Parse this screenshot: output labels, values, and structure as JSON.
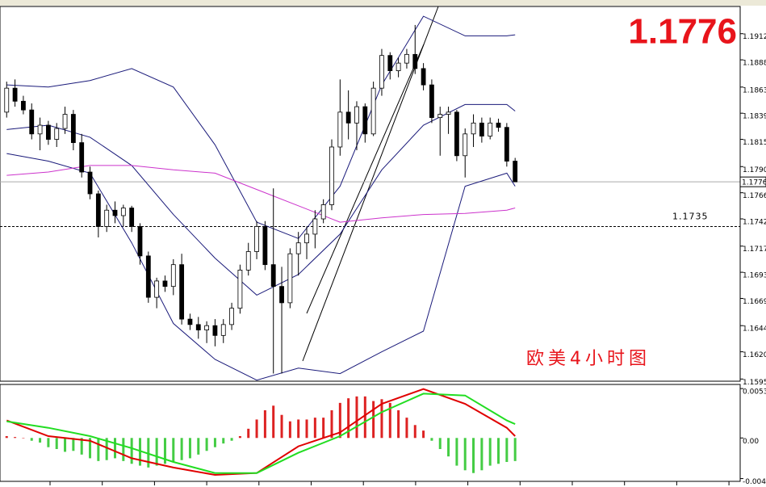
{
  "chart_data": [
    {
      "type": "candlestick",
      "title": "欧美4小时图",
      "current_price": 1.1776,
      "level": 1.1735,
      "xlim": [
        -0.8,
        88
      ],
      "ylim": [
        1.1593,
        1.1937
      ],
      "yticks": [
        1.1912,
        1.1888,
        1.1863,
        1.1839,
        1.1815,
        {
          "value": 1.179,
          "label": "1.1790"
        },
        1.1766,
        1.1742,
        1.1717,
        1.1693,
        1.1669,
        1.1644,
        {
          "value": 1.162,
          "label": "1.1620"
        },
        1.1595
      ],
      "up_color": "#ffffff",
      "down_color": "#000000",
      "open": [
        1.184,
        1.1862,
        1.185,
        1.1842,
        1.182,
        1.1828,
        1.1815,
        1.1825,
        1.1838,
        1.1812,
        1.1785,
        1.1765,
        1.1735,
        1.175,
        1.1745,
        1.1752,
        1.1735,
        1.1708,
        1.167,
        1.1685,
        1.168,
        1.17,
        1.165,
        1.1645,
        1.164,
        1.1644,
        1.1635,
        1.1645,
        1.166,
        1.1695,
        1.1712,
        1.1735,
        1.17,
        1.168,
        1.1665,
        1.171,
        1.172,
        1.1728,
        1.1742,
        1.1755,
        1.1808,
        1.184,
        1.183,
        1.1845,
        1.182,
        1.1862,
        1.1892,
        1.1878,
        1.1885,
        1.1893,
        1.188,
        1.1865,
        1.1835,
        1.1838,
        1.184,
        1.18,
        1.182,
        1.183,
        1.1818,
        1.183,
        1.1826,
        1.1795
      ],
      "high": [
        1.1868,
        1.187,
        1.1855,
        1.1848,
        1.1835,
        1.1832,
        1.183,
        1.1845,
        1.1842,
        1.182,
        1.179,
        1.1768,
        1.1755,
        1.1758,
        1.1755,
        1.1754,
        1.1738,
        1.1712,
        1.1688,
        1.169,
        1.1705,
        1.171,
        1.1655,
        1.1652,
        1.1648,
        1.165,
        1.165,
        1.1665,
        1.17,
        1.172,
        1.174,
        1.174,
        1.177,
        1.1698,
        1.1715,
        1.173,
        1.1735,
        1.175,
        1.176,
        1.1815,
        1.187,
        1.186,
        1.185,
        1.1848,
        1.1868,
        1.1898,
        1.1895,
        1.189,
        1.1898,
        1.192,
        1.1885,
        1.187,
        1.1845,
        1.1845,
        1.1842,
        1.1825,
        1.1838,
        1.1835,
        1.1835,
        1.1834,
        1.183,
        1.1798
      ],
      "low": [
        1.1835,
        1.1845,
        1.1838,
        1.1815,
        1.1805,
        1.181,
        1.1808,
        1.182,
        1.1805,
        1.178,
        1.176,
        1.1725,
        1.173,
        1.1738,
        1.1735,
        1.173,
        1.17,
        1.1665,
        1.166,
        1.1675,
        1.1672,
        1.1645,
        1.164,
        1.1632,
        1.1628,
        1.1625,
        1.1628,
        1.164,
        1.1655,
        1.169,
        1.1705,
        1.1695,
        1.16,
        1.16,
        1.166,
        1.169,
        1.1705,
        1.1715,
        1.1738,
        1.175,
        1.18,
        1.1815,
        1.1805,
        1.1812,
        1.1818,
        1.1855,
        1.187,
        1.1872,
        1.188,
        1.1875,
        1.186,
        1.183,
        1.18,
        1.182,
        1.1795,
        1.178,
        1.1808,
        1.1812,
        1.1815,
        1.1822,
        1.179,
        1.1776
      ],
      "close": [
        1.1862,
        1.185,
        1.1842,
        1.182,
        1.1828,
        1.1815,
        1.1825,
        1.1838,
        1.1812,
        1.1785,
        1.1765,
        1.1735,
        1.175,
        1.1745,
        1.1752,
        1.1735,
        1.1708,
        1.167,
        1.1685,
        1.168,
        1.17,
        1.165,
        1.1645,
        1.164,
        1.1644,
        1.1635,
        1.1645,
        1.166,
        1.1695,
        1.1712,
        1.1735,
        1.17,
        1.168,
        1.1665,
        1.171,
        1.172,
        1.1728,
        1.1742,
        1.1755,
        1.1808,
        1.184,
        1.183,
        1.1845,
        1.182,
        1.1862,
        1.1892,
        1.1878,
        1.1885,
        1.1893,
        1.188,
        1.1865,
        1.1835,
        1.1838,
        1.184,
        1.18,
        1.182,
        1.183,
        1.1818,
        1.183,
        1.1826,
        1.1795,
        1.1776
      ],
      "series": [
        {
          "color": "#1a1a7a",
          "x": [
            0,
            5,
            10,
            15,
            20,
            25,
            30,
            35,
            40,
            45,
            50,
            55,
            60,
            61
          ],
          "values": [
            1.1865,
            1.1863,
            1.1869,
            1.188,
            1.1863,
            1.181,
            1.1739,
            1.1724,
            1.1772,
            1.1865,
            1.1928,
            1.191,
            1.191,
            1.1911
          ]
        },
        {
          "color": "#1a1a7a",
          "x": [
            0,
            5,
            10,
            15,
            20,
            25,
            30,
            35,
            40,
            45,
            50,
            55,
            60,
            61
          ],
          "values": [
            1.1824,
            1.1828,
            1.1817,
            1.1791,
            1.1746,
            1.1706,
            1.1672,
            1.1691,
            1.1728,
            1.1787,
            1.1828,
            1.1847,
            1.1847,
            1.1841
          ]
        },
        {
          "color": "#1a1a7a",
          "x": [
            0,
            5,
            10,
            15,
            20,
            25,
            30,
            35,
            40,
            45,
            50,
            55,
            60,
            61
          ],
          "values": [
            1.1802,
            1.1795,
            1.1784,
            1.172,
            1.1646,
            1.1613,
            1.1594,
            1.1605,
            1.16,
            1.162,
            1.1639,
            1.1772,
            1.1784,
            1.1772
          ]
        },
        {
          "color": "#cc33cc",
          "x": [
            0,
            5,
            10,
            15,
            20,
            25,
            30,
            35,
            40,
            45,
            50,
            55,
            60,
            61
          ],
          "values": [
            1.1782,
            1.1785,
            1.1791,
            1.1791,
            1.1787,
            1.1784,
            1.1769,
            1.1754,
            1.1739,
            1.1743,
            1.1746,
            1.1747,
            1.175,
            1.1752
          ]
        }
      ]
    },
    {
      "type": "macd",
      "xlim": [
        -0.8,
        88
      ],
      "ylim": [
        -0.0047,
        0.0058
      ],
      "yticks": [
        0.00535,
        {
          "value": 0,
          "label": "0.00"
        },
        -0.0044
      ],
      "pos_color": "#dd2222",
      "neg_color": "#44cc44",
      "values": [
        0.0002,
        0.0001,
        0,
        -0.0003,
        -0.0005,
        -0.001,
        -0.0012,
        -0.0015,
        -0.0014,
        -0.0018,
        -0.0022,
        -0.0025,
        -0.0024,
        -0.0022,
        -0.0025,
        -0.0028,
        -0.003,
        -0.0032,
        -0.003,
        -0.0028,
        -0.0026,
        -0.0024,
        -0.0022,
        -0.0018,
        -0.0014,
        -0.001,
        -0.0006,
        -0.0003,
        0.0002,
        0.001,
        0.002,
        0.003,
        0.0035,
        0.0025,
        0.0018,
        0.002,
        0.002,
        0.0022,
        0.0022,
        0.003,
        0.0038,
        0.0043,
        0.0045,
        0.0045,
        0.004,
        0.0042,
        0.0038,
        0.003,
        0.0022,
        0.0014,
        0.0008,
        -0.0003,
        -0.0012,
        -0.002,
        -0.003,
        -0.0035,
        -0.0038,
        -0.0035,
        -0.003,
        -0.0028,
        -0.0026,
        -0.0025
      ],
      "series": [
        {
          "color": "#e00000",
          "x": [
            0,
            5,
            10,
            15,
            20,
            25,
            30,
            35,
            40,
            45,
            50,
            55,
            60,
            61
          ],
          "values": [
            0.0019,
            0.0002,
            -0.0003,
            -0.0022,
            -0.0032,
            -0.004,
            -0.0038,
            -0.0009,
            0.0006,
            0.0037,
            0.0053,
            0.0037,
            0.0011,
            0.0002
          ]
        },
        {
          "color": "#22dd22",
          "x": [
            0,
            5,
            10,
            15,
            20,
            25,
            30,
            35,
            40,
            45,
            50,
            55,
            60,
            61
          ],
          "values": [
            0.0018,
            0.0011,
            0.0002,
            -0.0011,
            -0.0026,
            -0.0038,
            -0.0038,
            -0.0016,
            0.0002,
            0.0028,
            0.0048,
            0.0046,
            0.0019,
            0.0015
          ]
        }
      ]
    }
  ]
}
